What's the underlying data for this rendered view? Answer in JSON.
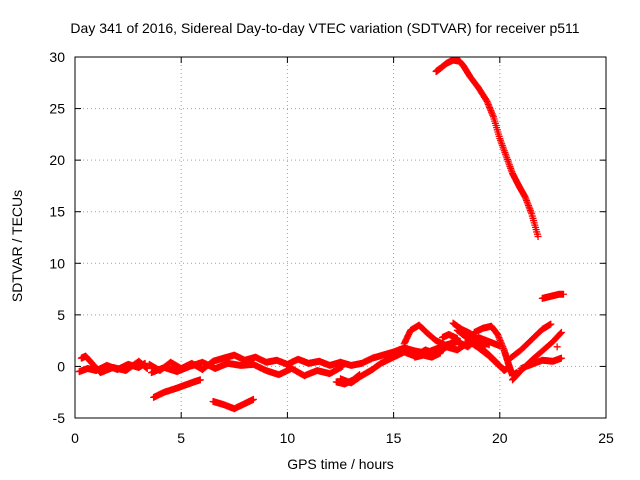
{
  "chart_data": {
    "type": "scatter",
    "title": "Day 341 of 2016, Sidereal Day-to-day VTEC variation (SDTVAR) for receiver p511",
    "xlabel": "GPS time / hours",
    "ylabel": "SDTVAR / TECUs",
    "xlim": [
      0,
      25
    ],
    "ylim": [
      -5,
      30
    ],
    "xticks": [
      0,
      5,
      10,
      15,
      20,
      25
    ],
    "yticks": [
      -5,
      0,
      5,
      10,
      15,
      20,
      25,
      30
    ],
    "grid": true,
    "marker": "+",
    "color": "#ff0000",
    "series": [
      {
        "tracks": [
          [
            [
              0.2,
              -0.5
            ],
            [
              0.6,
              -0.2
            ],
            [
              1.0,
              -0.4
            ],
            [
              1.5,
              0.1
            ],
            [
              2.0,
              -0.3
            ],
            [
              2.5,
              0.2
            ],
            [
              3.0,
              -0.1
            ],
            [
              3.3,
              0.3
            ]
          ],
          [
            [
              0.3,
              0.8
            ],
            [
              0.5,
              1.0
            ],
            [
              0.8,
              0.3
            ],
            [
              1.2,
              -0.6
            ],
            [
              1.8,
              -0.1
            ],
            [
              2.4,
              -0.4
            ],
            [
              3.0,
              0.5
            ],
            [
              3.4,
              -0.2
            ]
          ],
          [
            [
              3.5,
              0.2
            ],
            [
              4.0,
              -0.4
            ],
            [
              4.5,
              0.4
            ],
            [
              5.0,
              -0.2
            ],
            [
              5.5,
              0.3
            ],
            [
              6.0,
              -0.3
            ],
            [
              6.5,
              0.5
            ],
            [
              7.0,
              0.8
            ],
            [
              7.5,
              1.1
            ],
            [
              8.0,
              0.6
            ],
            [
              8.5,
              0.9
            ],
            [
              9.0,
              0.4
            ],
            [
              9.5,
              0.6
            ],
            [
              10.0,
              0.2
            ],
            [
              10.5,
              0.7
            ],
            [
              11.0,
              0.3
            ],
            [
              11.5,
              0.5
            ],
            [
              12.0,
              0.1
            ],
            [
              12.5,
              0.4
            ]
          ],
          [
            [
              3.6,
              -0.6
            ],
            [
              4.2,
              -0.1
            ],
            [
              4.8,
              -0.5
            ],
            [
              5.4,
              0.0
            ],
            [
              6.0,
              0.4
            ],
            [
              6.6,
              -0.2
            ],
            [
              7.2,
              0.3
            ],
            [
              7.8,
              0.1
            ],
            [
              8.4,
              0.2
            ],
            [
              9.0,
              -0.4
            ],
            [
              9.6,
              -0.8
            ],
            [
              10.2,
              -0.2
            ],
            [
              10.8,
              -0.9
            ],
            [
              11.4,
              -0.4
            ],
            [
              12.0,
              -0.7
            ],
            [
              12.6,
              0.0
            ]
          ],
          [
            [
              3.7,
              -3.0
            ],
            [
              4.2,
              -2.5
            ],
            [
              4.8,
              -2.1
            ],
            [
              5.2,
              -1.8
            ],
            [
              5.6,
              -1.5
            ],
            [
              5.9,
              -1.3
            ]
          ],
          [
            [
              6.5,
              -3.4
            ],
            [
              7.0,
              -3.7
            ],
            [
              7.5,
              -4.1
            ],
            [
              8.0,
              -3.6
            ],
            [
              8.4,
              -3.2
            ]
          ],
          [
            [
              12.5,
              0.4
            ],
            [
              13.0,
              0.1
            ],
            [
              13.5,
              0.3
            ],
            [
              14.0,
              0.8
            ],
            [
              14.5,
              1.1
            ],
            [
              15.0,
              1.4
            ],
            [
              15.5,
              1.8
            ],
            [
              16.0,
              1.5
            ],
            [
              16.5,
              1.3
            ],
            [
              17.0,
              1.7
            ],
            [
              17.5,
              2.1
            ],
            [
              18.0,
              2.4
            ],
            [
              18.5,
              1.9
            ],
            [
              19.0,
              2.8
            ],
            [
              19.5,
              2.4
            ],
            [
              20.0,
              2.0
            ]
          ],
          [
            [
              12.5,
              -1.2
            ],
            [
              13.0,
              -1.6
            ],
            [
              13.5,
              -0.9
            ],
            [
              14.0,
              -0.3
            ],
            [
              14.4,
              0.3
            ],
            [
              15.0,
              0.9
            ],
            [
              15.5,
              1.4
            ],
            [
              16.0,
              1.0
            ],
            [
              16.5,
              1.6
            ],
            [
              17.0,
              1.2
            ],
            [
              17.5,
              1.9
            ],
            [
              18.0,
              1.6
            ],
            [
              18.5,
              2.3
            ],
            [
              19.0,
              2.7
            ],
            [
              19.5,
              2.1
            ]
          ],
          [
            [
              12.3,
              -1.5
            ],
            [
              12.7,
              -1.7
            ],
            [
              13.1,
              -1.3
            ],
            [
              13.4,
              -0.8
            ]
          ],
          [
            [
              15.5,
              2.2
            ],
            [
              15.8,
              3.5
            ],
            [
              16.2,
              4.0
            ],
            [
              16.6,
              3.2
            ],
            [
              17.0,
              2.5
            ],
            [
              17.5,
              2.0
            ],
            [
              18.0,
              2.6
            ]
          ],
          [
            [
              16.0,
              0.9
            ],
            [
              16.4,
              1.1
            ],
            [
              16.8,
              0.9
            ],
            [
              17.2,
              1.3
            ]
          ],
          [
            [
              18.0,
              3.5
            ],
            [
              18.5,
              2.7
            ],
            [
              19.0,
              2.0
            ],
            [
              19.4,
              1.3
            ],
            [
              19.8,
              0.5
            ],
            [
              20.2,
              -0.4
            ],
            [
              20.4,
              -0.1
            ]
          ],
          [
            [
              18.5,
              2.5
            ],
            [
              19.0,
              1.8
            ],
            [
              19.5,
              1.0
            ],
            [
              19.9,
              0.2
            ],
            [
              20.2,
              -0.3
            ]
          ],
          [
            [
              18.8,
              3.3
            ],
            [
              19.2,
              3.7
            ],
            [
              19.6,
              3.9
            ],
            [
              19.9,
              3.1
            ],
            [
              20.2,
              1.6
            ],
            [
              20.4,
              0.3
            ],
            [
              20.6,
              -0.9
            ],
            [
              20.8,
              -0.6
            ]
          ],
          [
            [
              17.8,
              4.2
            ],
            [
              18.2,
              3.6
            ],
            [
              18.6,
              3.2
            ],
            [
              19.0,
              2.6
            ],
            [
              19.3,
              1.9
            ]
          ],
          [
            [
              17.3,
              2.8
            ],
            [
              17.6,
              3.1
            ],
            [
              18.0,
              2.7
            ]
          ],
          [
            [
              20.6,
              -1.3
            ],
            [
              21.0,
              -0.4
            ],
            [
              21.5,
              0.6
            ],
            [
              22.0,
              1.5
            ],
            [
              22.5,
              2.4
            ],
            [
              22.9,
              3.3
            ]
          ],
          [
            [
              20.5,
              0.8
            ],
            [
              21.0,
              1.6
            ],
            [
              21.5,
              2.6
            ],
            [
              22.0,
              3.6
            ],
            [
              22.4,
              4.1
            ]
          ],
          [
            [
              21.0,
              -0.2
            ],
            [
              21.5,
              0.2
            ],
            [
              22.0,
              0.6
            ],
            [
              22.5,
              0.5
            ],
            [
              22.9,
              0.8
            ]
          ],
          [
            [
              22.7,
              1.9
            ]
          ],
          [
            [
              22.0,
              6.6
            ],
            [
              22.4,
              6.8
            ],
            [
              22.8,
              7.0
            ],
            [
              23.0,
              7.0
            ]
          ],
          [
            [
              17.0,
              28.6
            ],
            [
              17.2,
              28.9
            ],
            [
              17.5,
              29.4
            ],
            [
              17.8,
              29.7
            ],
            [
              18.1,
              29.6
            ],
            [
              18.3,
              29.1
            ],
            [
              18.6,
              28.1
            ],
            [
              19.0,
              27.0
            ],
            [
              19.4,
              25.7
            ],
            [
              19.7,
              24.2
            ],
            [
              20.0,
              22.1
            ],
            [
              20.3,
              20.4
            ],
            [
              20.6,
              18.7
            ],
            [
              20.9,
              17.5
            ],
            [
              21.2,
              16.4
            ],
            [
              21.5,
              14.8
            ],
            [
              21.8,
              12.6
            ]
          ]
        ]
      }
    ]
  }
}
